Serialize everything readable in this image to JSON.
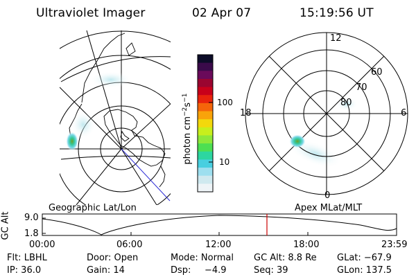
{
  "header": {
    "instrument": "Ultraviolet Imager",
    "date": "02 Apr 07",
    "time": "15:19:56 UT"
  },
  "colorbar": {
    "unit": "photon cm",
    "unit_exp1": "−2",
    "unit_mid": "s",
    "unit_exp2": "−1",
    "ticks": [
      "100",
      "10"
    ],
    "colors": [
      "#0c0c28",
      "#3a0a4a",
      "#6a0a5a",
      "#9a0530",
      "#c8001a",
      "#e8230c",
      "#f5650a",
      "#f9a30a",
      "#f3d80c",
      "#c8ef1c",
      "#8ee83a",
      "#4ddf52",
      "#2dd6a0",
      "#48cfe0",
      "#9ddfef",
      "#cfe9ef",
      "#eef4f7"
    ]
  },
  "left_map": {
    "caption": "Geographic Lat/Lon"
  },
  "right_map": {
    "caption": "Apex MLat/MLT",
    "mlt_labels": {
      "top": "12",
      "left": "18",
      "right": "6",
      "bottom": "0"
    },
    "mlat_labels": [
      "60",
      "70",
      "80"
    ]
  },
  "timeline": {
    "axis_label_rot": "GC Alt",
    "y_ticks": [
      "9.0",
      "1.8"
    ],
    "x_ticks": [
      "00:00",
      "06:00",
      "12:00",
      "18:00",
      "23:59"
    ],
    "current_time_marker": "15:19:56",
    "colors": {
      "marker": "#cc0000"
    }
  },
  "footer": {
    "flt": "Flt: LBHL",
    "ip": "IP: 36.0",
    "door": "Door: Open",
    "gain": "Gain: 14",
    "mode": "Mode: Normal",
    "dsp_label": "Dsp:",
    "dsp_value": "−4.9",
    "gc_alt": "GC Alt: 8.8 Re",
    "seq": "Seq: 39",
    "glat": "GLat: −67.9",
    "glon": "GLon: 137.5"
  }
}
